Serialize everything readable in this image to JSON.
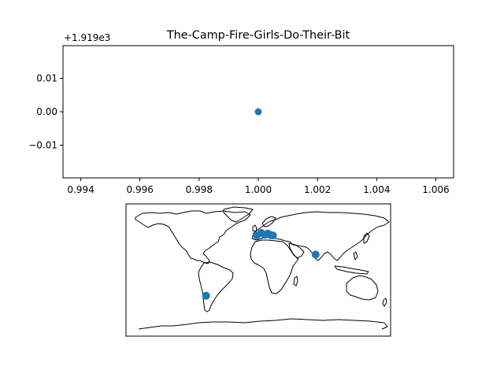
{
  "chart_data": [
    {
      "type": "scatter",
      "title": "The-Camp-Fire-Girls-Do-Their-Bit",
      "offset_text": "+1.919e3",
      "xlim": [
        0.9934,
        1.0066
      ],
      "ylim": [
        -0.0198,
        0.0198
      ],
      "xticks": [
        0.994,
        0.996,
        0.998,
        1.0,
        1.002,
        1.004,
        1.006
      ],
      "xtick_labels": [
        "0.994",
        "0.996",
        "0.998",
        "1.000",
        "1.002",
        "1.004",
        "1.006"
      ],
      "yticks": [
        0.01,
        0.0,
        -0.01
      ],
      "ytick_labels": [
        "0.01",
        "0.00",
        "−0.01"
      ],
      "points": [
        {
          "x": 1.0,
          "y": 0.0
        }
      ],
      "color": "#1f77b4"
    },
    {
      "type": "scatter",
      "projection": "world-map",
      "xlim": [
        -180,
        180
      ],
      "ylim": [
        -90,
        90
      ],
      "points": [
        {
          "x": -2.0,
          "y": 47.0
        },
        {
          "x": 4.0,
          "y": 50.5
        },
        {
          "x": 9.0,
          "y": 48.0
        },
        {
          "x": 13.0,
          "y": 49.5
        },
        {
          "x": 17.0,
          "y": 47.5
        },
        {
          "x": 20.0,
          "y": 47.0
        },
        {
          "x": 78.0,
          "y": 21.0
        },
        {
          "x": -71.0,
          "y": -35.0
        }
      ],
      "color": "#1f77b4"
    }
  ]
}
